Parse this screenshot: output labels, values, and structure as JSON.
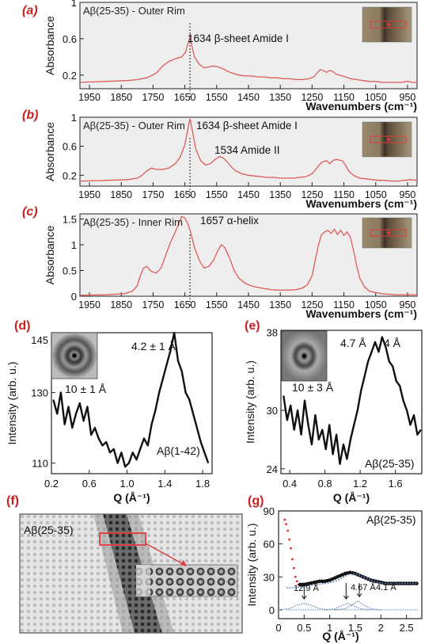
{
  "colors": {
    "panel_label": "#cc1f1f",
    "ir_line": "#e05a5a",
    "frame_bg": "#eeeeee",
    "marker": "#e03a3a",
    "fit_line": "#5d84b8"
  },
  "chart_data": [
    {
      "id": "a",
      "panel_label": "(a)",
      "type": "line",
      "title": "Aβ(25-35) - Outer Rim",
      "annotation": "1634 β-sheet Amide I",
      "xlabel": "Wavenumbers (cm⁻¹)",
      "ylabel": "Absorbance",
      "xlim": [
        1980,
        920
      ],
      "ylim": [
        0.05,
        1.0
      ],
      "xticks": [
        1950,
        1850,
        1750,
        1650,
        1550,
        1450,
        1350,
        1250,
        1150,
        1050,
        950
      ],
      "xtick_labels": [
        "1950",
        "1850",
        "1750",
        "1650",
        "1550",
        "1450",
        "1350",
        "1250",
        "1150",
        "1050",
        "950"
      ],
      "yticks": [
        0.2,
        0.6,
        1.0
      ],
      "ytick_labels": [
        "0.2",
        "0.6",
        "1"
      ],
      "x": [
        1980,
        1900,
        1830,
        1800,
        1770,
        1740,
        1720,
        1700,
        1680,
        1660,
        1648,
        1640,
        1634,
        1628,
        1620,
        1605,
        1590,
        1575,
        1560,
        1545,
        1530,
        1515,
        1500,
        1480,
        1460,
        1440,
        1420,
        1400,
        1380,
        1360,
        1340,
        1320,
        1300,
        1280,
        1260,
        1245,
        1235,
        1225,
        1215,
        1205,
        1195,
        1185,
        1175,
        1165,
        1155,
        1145,
        1130,
        1110,
        1090,
        1070,
        1050,
        1030,
        1010,
        990,
        970,
        950,
        935,
        920
      ],
      "y": [
        0.12,
        0.13,
        0.14,
        0.15,
        0.17,
        0.22,
        0.3,
        0.35,
        0.38,
        0.4,
        0.45,
        0.55,
        0.62,
        0.52,
        0.4,
        0.32,
        0.28,
        0.29,
        0.3,
        0.29,
        0.27,
        0.24,
        0.22,
        0.2,
        0.19,
        0.19,
        0.18,
        0.18,
        0.17,
        0.17,
        0.16,
        0.16,
        0.15,
        0.15,
        0.16,
        0.18,
        0.22,
        0.26,
        0.25,
        0.23,
        0.25,
        0.24,
        0.21,
        0.2,
        0.19,
        0.18,
        0.16,
        0.15,
        0.14,
        0.13,
        0.13,
        0.12,
        0.12,
        0.12,
        0.12,
        0.13,
        0.12,
        0.12
      ],
      "dashed_x": 1634
    },
    {
      "id": "b",
      "panel_label": "(b)",
      "type": "line",
      "title": "Aβ(25-35) - Outer Rim",
      "annotations": [
        "1634 β-sheet Amide I",
        "1534 Amide II"
      ],
      "xlabel": "Wavenumbers (cm⁻¹)",
      "ylabel": "Absorbance",
      "xlim": [
        1980,
        920
      ],
      "ylim": [
        0.05,
        1.0
      ],
      "xticks": [
        1950,
        1850,
        1750,
        1650,
        1550,
        1450,
        1350,
        1250,
        1150,
        1050,
        950
      ],
      "xtick_labels": [
        "1950",
        "1850",
        "1750",
        "1650",
        "1550",
        "1450",
        "1350",
        "1250",
        "1150",
        "1050",
        "950"
      ],
      "yticks": [
        0.2,
        0.6,
        1.0
      ],
      "ytick_labels": [
        "0.2",
        "0.6",
        "1"
      ],
      "x": [
        1980,
        1900,
        1830,
        1800,
        1785,
        1770,
        1755,
        1740,
        1720,
        1700,
        1680,
        1665,
        1650,
        1642,
        1634,
        1626,
        1615,
        1600,
        1585,
        1570,
        1555,
        1540,
        1530,
        1520,
        1505,
        1490,
        1470,
        1450,
        1430,
        1410,
        1390,
        1370,
        1350,
        1330,
        1310,
        1290,
        1270,
        1250,
        1235,
        1220,
        1205,
        1195,
        1185,
        1175,
        1165,
        1155,
        1145,
        1135,
        1120,
        1100,
        1080,
        1060,
        1040,
        1020,
        1000,
        980,
        960,
        940,
        920
      ],
      "y": [
        0.12,
        0.13,
        0.14,
        0.16,
        0.2,
        0.26,
        0.3,
        0.28,
        0.28,
        0.3,
        0.36,
        0.45,
        0.62,
        0.8,
        0.98,
        0.8,
        0.55,
        0.4,
        0.34,
        0.36,
        0.42,
        0.46,
        0.44,
        0.4,
        0.32,
        0.26,
        0.22,
        0.2,
        0.19,
        0.18,
        0.17,
        0.17,
        0.16,
        0.16,
        0.16,
        0.17,
        0.18,
        0.22,
        0.3,
        0.38,
        0.4,
        0.36,
        0.4,
        0.42,
        0.41,
        0.4,
        0.34,
        0.26,
        0.2,
        0.16,
        0.15,
        0.14,
        0.13,
        0.13,
        0.12,
        0.12,
        0.13,
        0.14,
        0.13
      ],
      "dashed_x": 1634
    },
    {
      "id": "c",
      "panel_label": "(c)",
      "type": "line",
      "title": "Aβ(25-35) - Inner Rim",
      "annotation": "1657 α-helix",
      "xlabel": "Wavenumbers (cm⁻¹)",
      "ylabel": "Absorbance",
      "xlim": [
        1980,
        920
      ],
      "ylim": [
        0,
        1.6
      ],
      "xticks": [
        1950,
        1850,
        1750,
        1650,
        1550,
        1450,
        1350,
        1250,
        1150,
        1050,
        950
      ],
      "xtick_labels": [
        "1950",
        "1850",
        "1750",
        "1650",
        "1550",
        "1450",
        "1350",
        "1250",
        "1150",
        "1050",
        "950"
      ],
      "yticks": [
        0,
        0.5,
        1.0,
        1.5
      ],
      "ytick_labels": [
        "0",
        "0.5",
        "1",
        "1.5"
      ],
      "x": [
        1980,
        1900,
        1840,
        1815,
        1800,
        1790,
        1780,
        1770,
        1755,
        1740,
        1725,
        1710,
        1695,
        1680,
        1670,
        1660,
        1650,
        1640,
        1630,
        1620,
        1605,
        1590,
        1575,
        1560,
        1545,
        1535,
        1525,
        1510,
        1495,
        1480,
        1460,
        1440,
        1420,
        1400,
        1380,
        1360,
        1340,
        1320,
        1300,
        1280,
        1265,
        1250,
        1240,
        1230,
        1220,
        1210,
        1200,
        1190,
        1180,
        1170,
        1160,
        1150,
        1140,
        1130,
        1120,
        1110,
        1100,
        1085,
        1070,
        1050,
        1030,
        1010,
        990,
        970,
        950,
        935,
        920
      ],
      "y": [
        0.02,
        0.03,
        0.05,
        0.1,
        0.2,
        0.4,
        0.55,
        0.58,
        0.48,
        0.45,
        0.55,
        0.8,
        1.05,
        1.25,
        1.4,
        1.55,
        1.52,
        1.4,
        1.2,
        0.95,
        0.7,
        0.55,
        0.58,
        0.7,
        0.9,
        1.0,
        0.95,
        0.75,
        0.5,
        0.35,
        0.25,
        0.2,
        0.17,
        0.15,
        0.13,
        0.12,
        0.12,
        0.12,
        0.13,
        0.16,
        0.22,
        0.4,
        0.7,
        1.0,
        1.2,
        1.25,
        1.28,
        1.22,
        1.3,
        1.2,
        1.28,
        1.18,
        1.25,
        1.15,
        0.9,
        0.6,
        0.35,
        0.18,
        0.1,
        0.07,
        0.05,
        0.04,
        0.03,
        0.03,
        0.03,
        0.03,
        0.03
      ],
      "dashed_x": 1634
    },
    {
      "id": "d",
      "panel_label": "(d)",
      "type": "line",
      "label": "Aβ(1-42)",
      "annotations": [
        "4.2 ± 1 Å",
        "10 ± 1 Å"
      ],
      "xlabel": "Q (Å⁻¹)",
      "ylabel": "Intensity (arb. u.)",
      "xlim": [
        0.2,
        1.9
      ],
      "ylim": [
        107,
        147
      ],
      "xticks": [
        0.2,
        0.6,
        1.0,
        1.4,
        1.8
      ],
      "xtick_labels": [
        "0.2",
        "0.6",
        "1.0",
        "1.4",
        "1.8"
      ],
      "yticks": [
        110,
        130,
        145
      ],
      "ytick_labels": [
        "110",
        "130",
        "145"
      ],
      "x": [
        0.22,
        0.26,
        0.3,
        0.34,
        0.38,
        0.42,
        0.46,
        0.5,
        0.54,
        0.58,
        0.62,
        0.66,
        0.7,
        0.74,
        0.78,
        0.82,
        0.86,
        0.9,
        0.94,
        0.98,
        1.02,
        1.06,
        1.1,
        1.14,
        1.18,
        1.22,
        1.26,
        1.3,
        1.34,
        1.38,
        1.42,
        1.46,
        1.5,
        1.54,
        1.58,
        1.62,
        1.66,
        1.7,
        1.74,
        1.78,
        1.82,
        1.86
      ],
      "y": [
        128,
        124,
        130,
        121,
        126,
        120,
        124,
        127,
        122,
        126,
        118,
        120,
        117,
        115,
        116,
        113,
        114,
        110,
        113,
        109,
        110,
        113,
        111,
        114,
        117,
        115,
        121,
        125,
        130,
        134,
        138,
        142,
        147,
        139,
        136,
        130,
        128,
        124,
        120,
        116,
        113,
        110
      ]
    },
    {
      "id": "e",
      "panel_label": "(e)",
      "type": "line",
      "label": "Aβ(25-35)",
      "annotations": [
        "4.7 Å",
        "4 Å",
        "10 ± 3 Å"
      ],
      "xlabel": "Q (Å⁻¹)",
      "ylabel": "Intensity (arb. u.)",
      "xlim": [
        0.3,
        1.9
      ],
      "ylim": [
        23.5,
        38.2
      ],
      "xticks": [
        0.4,
        0.8,
        1.2,
        1.6
      ],
      "xtick_labels": [
        "0.4",
        "0.8",
        "1.2",
        "1.6"
      ],
      "yticks": [
        24,
        30,
        38
      ],
      "ytick_labels": [
        "24",
        "30",
        "38"
      ],
      "x": [
        0.33,
        0.37,
        0.41,
        0.45,
        0.49,
        0.53,
        0.57,
        0.61,
        0.65,
        0.69,
        0.73,
        0.77,
        0.81,
        0.85,
        0.89,
        0.93,
        0.97,
        1.01,
        1.05,
        1.09,
        1.13,
        1.17,
        1.21,
        1.25,
        1.29,
        1.33,
        1.37,
        1.41,
        1.45,
        1.49,
        1.53,
        1.57,
        1.61,
        1.65,
        1.69,
        1.73,
        1.77,
        1.81,
        1.85,
        1.89
      ],
      "y": [
        31.5,
        29.0,
        30.5,
        28.0,
        30.0,
        27.5,
        31.0,
        28.5,
        26.5,
        29.5,
        27.0,
        28.0,
        26.0,
        28.5,
        25.5,
        27.5,
        24.5,
        26.5,
        25.0,
        27.0,
        28.5,
        30.0,
        32.0,
        33.5,
        35.0,
        36.0,
        37.0,
        36.0,
        37.5,
        36.5,
        35.0,
        34.5,
        33.0,
        32.5,
        31.0,
        30.0,
        28.5,
        29.5,
        27.5,
        28.0
      ]
    },
    {
      "id": "f",
      "panel_label": "(f)",
      "type": "image",
      "label": "Aβ(25-35)"
    },
    {
      "id": "g",
      "panel_label": "(g)",
      "type": "scatter",
      "label": "Aβ(25-35)",
      "annotations": [
        "12.9 Å",
        "4.67 Å",
        "4.1 Å"
      ],
      "xlabel": "Q (Å⁻¹)",
      "ylabel": "Intensity (arb. u.)",
      "xlim": [
        0,
        2.8
      ],
      "ylim": [
        -8,
        90
      ],
      "xticks": [
        0,
        0.5,
        1,
        1.5,
        2,
        2.5
      ],
      "xtick_labels": [
        "0",
        "0.5",
        "1",
        "1.5",
        "2",
        "2.5"
      ],
      "yticks": [
        0,
        30,
        60,
        90
      ],
      "ytick_labels": [
        "0",
        "30",
        "60",
        "90"
      ],
      "series": [
        {
          "marker": "dot-red",
          "x": [
            0.12,
            0.15,
            0.18,
            0.21,
            0.24,
            0.27,
            0.3,
            0.33,
            0.36,
            0.39
          ],
          "y": [
            82,
            78,
            72,
            64,
            56,
            46,
            38,
            30,
            26,
            23
          ]
        },
        {
          "marker": "dot-black",
          "x": [
            0.42,
            0.5,
            0.6,
            0.7,
            0.8,
            0.9,
            1.0,
            1.1,
            1.2,
            1.3,
            1.4,
            1.5,
            1.6,
            1.7,
            1.8,
            1.9,
            2.0,
            2.1,
            2.2,
            2.3,
            2.4,
            2.5,
            2.6,
            2.7
          ],
          "y": [
            23,
            23,
            24,
            25,
            26,
            26,
            27,
            29,
            31,
            33,
            34,
            33,
            31,
            29,
            27,
            26,
            25,
            24,
            24,
            24,
            24,
            24,
            24,
            24
          ]
        },
        {
          "marker": "fit-line",
          "x": [
            0.15,
            0.3,
            0.45,
            0.6,
            0.75,
            0.9,
            1.05,
            1.2,
            1.35,
            1.5,
            1.65,
            1.8,
            1.95,
            2.1,
            2.3,
            2.5,
            2.7
          ],
          "y": [
            20,
            20,
            21,
            22,
            23,
            24,
            25,
            28,
            32,
            33,
            30,
            27,
            25,
            24,
            24,
            24,
            24
          ]
        },
        {
          "marker": "peak-12.9",
          "x": [
            0.0,
            0.2,
            0.35,
            0.5,
            0.65,
            0.8,
            1.0
          ],
          "y": [
            0,
            1,
            4,
            6,
            4,
            1,
            0
          ]
        },
        {
          "marker": "peak-4.67",
          "x": [
            0.9,
            1.1,
            1.25,
            1.35,
            1.45,
            1.6,
            1.8
          ],
          "y": [
            0,
            1,
            4,
            6,
            4,
            1,
            0
          ]
        },
        {
          "marker": "peak-4.1",
          "x": [
            1.1,
            1.3,
            1.45,
            1.55,
            1.65,
            1.8,
            2.0
          ],
          "y": [
            0,
            1,
            5,
            8,
            5,
            1,
            0
          ]
        }
      ]
    }
  ]
}
